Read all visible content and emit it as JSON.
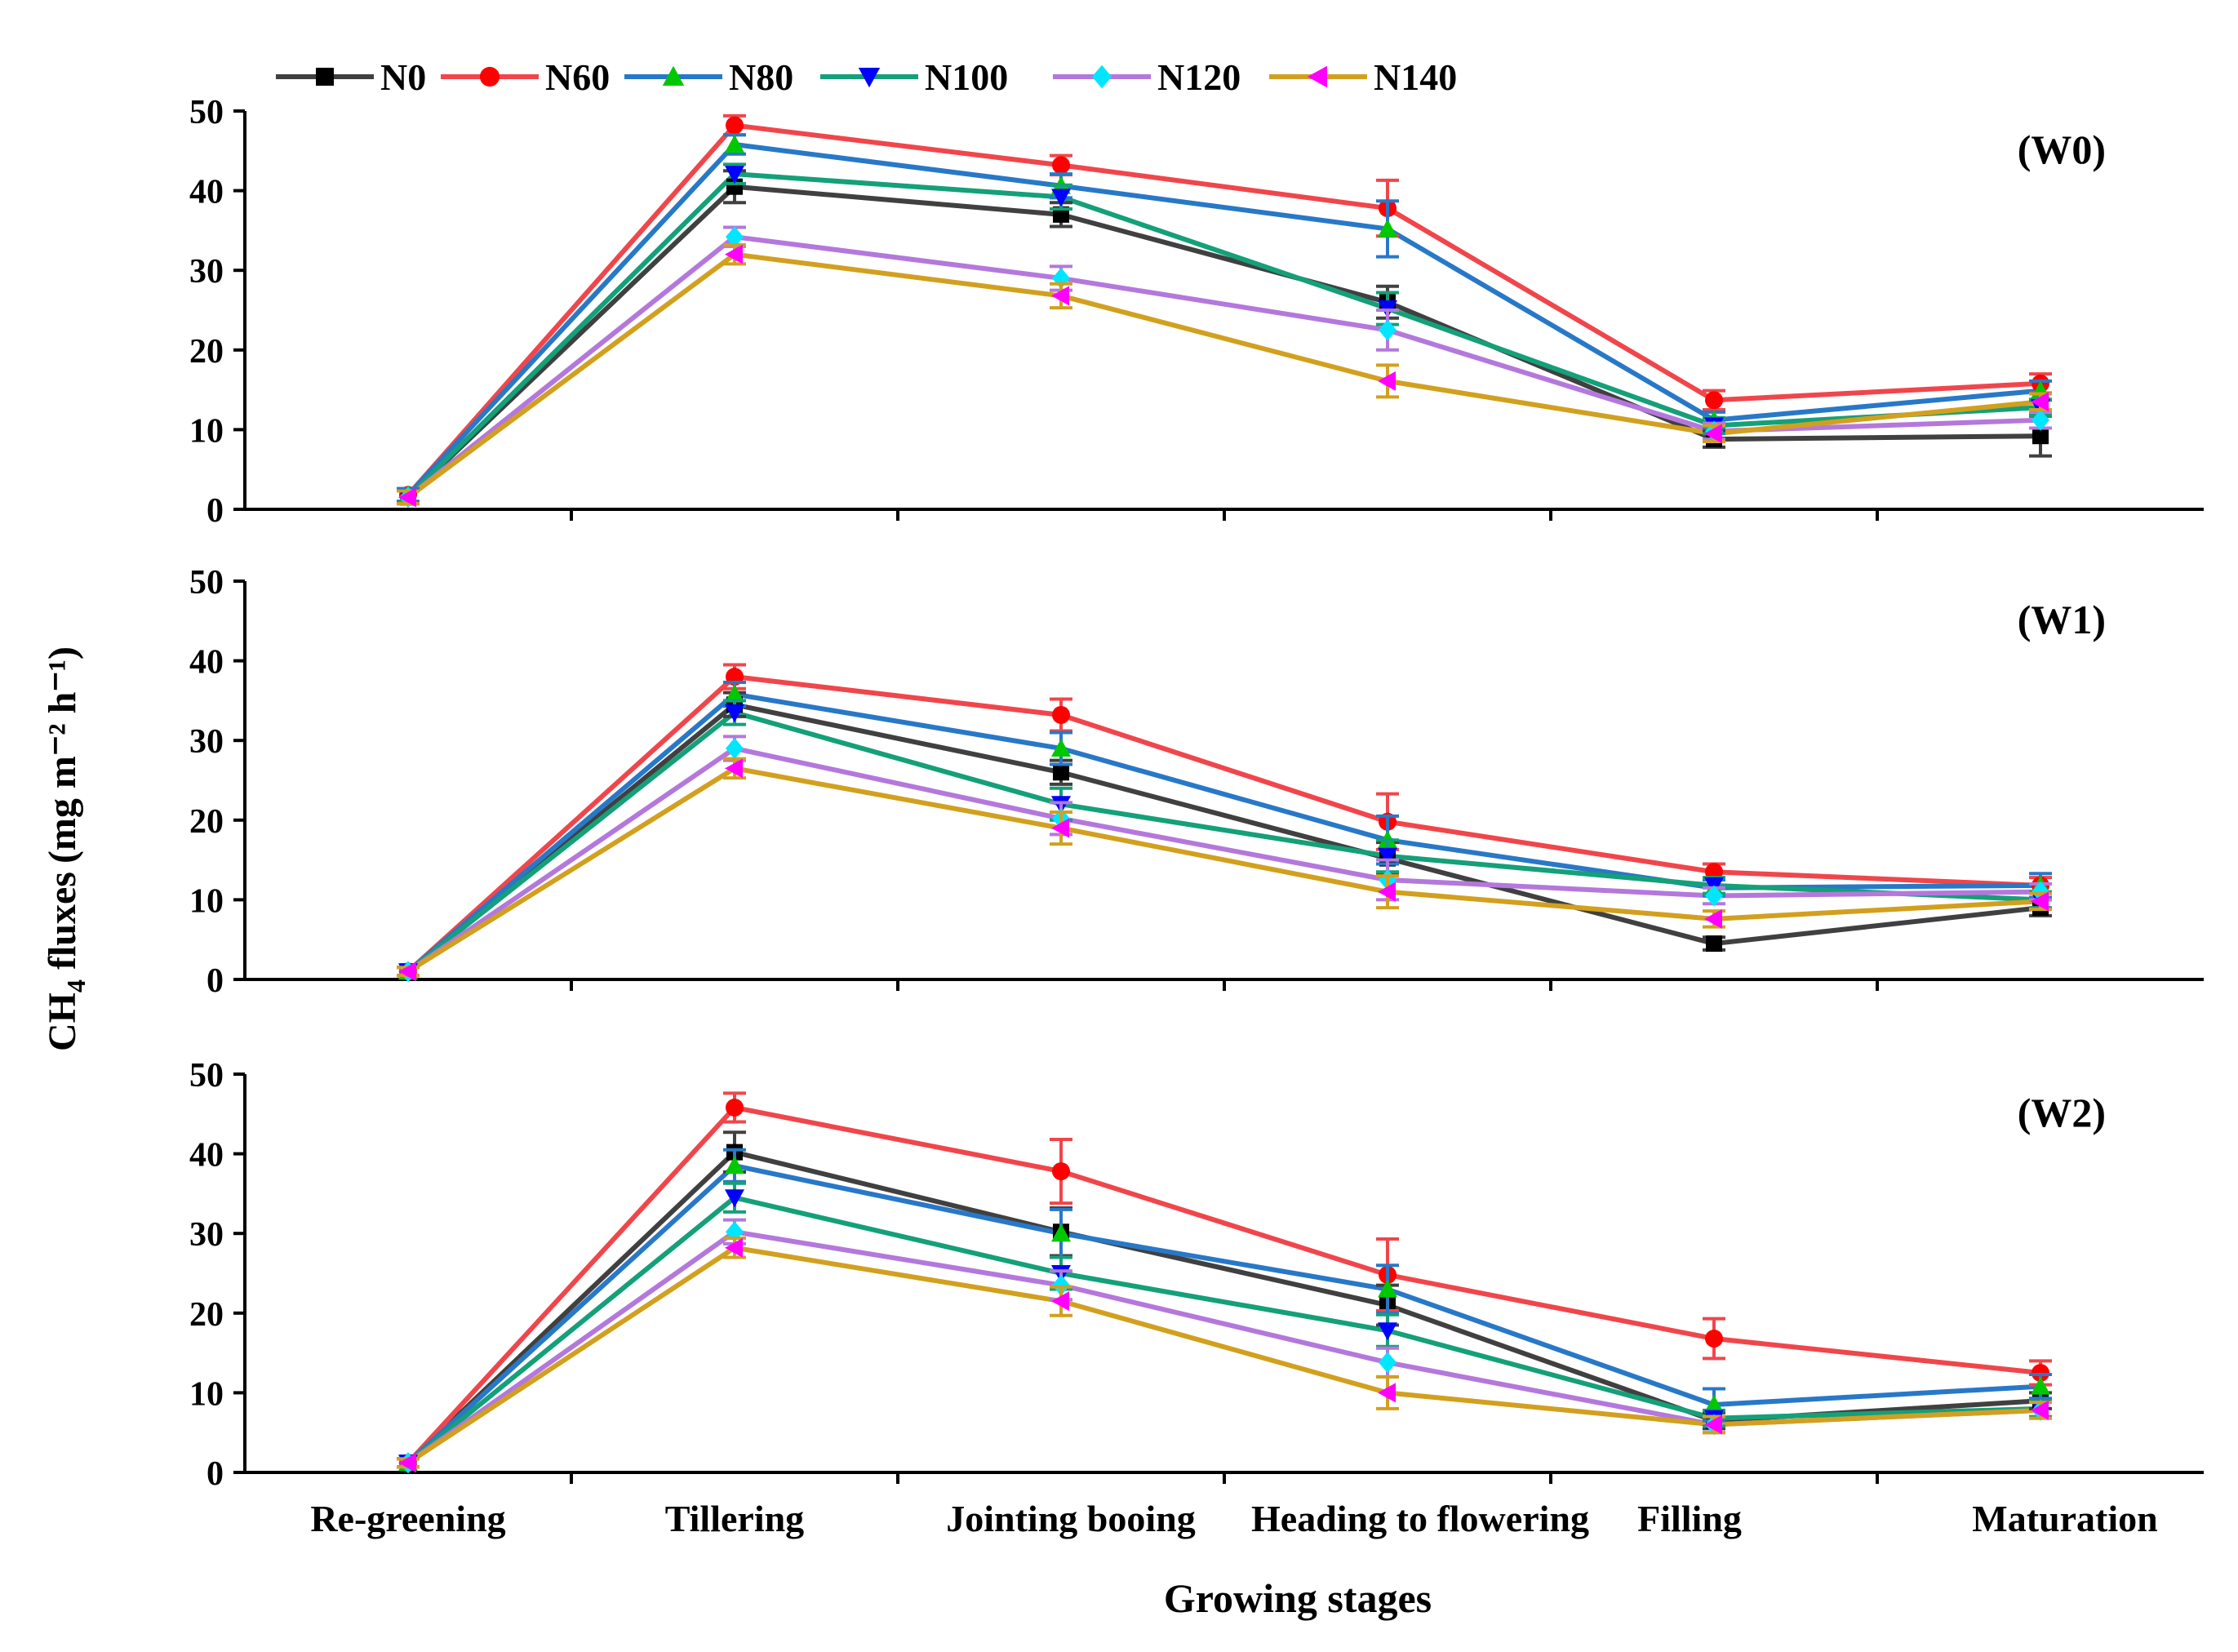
{
  "chart_data": {
    "type": "line",
    "xlabel": "Growing stages",
    "ylabel_main": "CH",
    "ylabel_sub": "4",
    "ylabel_rest": " fluxes",
    "ylabel_unit": "(mg m⁻² h⁻¹)",
    "categories": [
      "Re-greening",
      "Tillering",
      "Jointing booing",
      "Heading to flowering",
      "Filling",
      "Maturation"
    ],
    "ylim": [
      0,
      50
    ],
    "yticks": [
      0,
      10,
      20,
      30,
      40,
      50
    ],
    "legend_position": "top-left",
    "series_style": [
      {
        "name": "N0",
        "color": "#404040",
        "marker_color": "#000000",
        "marker": "square"
      },
      {
        "name": "N60",
        "color": "#f0464b",
        "marker_color": "#ff0000",
        "marker": "circle"
      },
      {
        "name": "N80",
        "color": "#2878c8",
        "marker_color": "#00c800",
        "marker": "triangle-up"
      },
      {
        "name": "N100",
        "color": "#14a078",
        "marker_color": "#0000ff",
        "marker": "triangle-down"
      },
      {
        "name": "N120",
        "color": "#b478dc",
        "marker_color": "#00e6ff",
        "marker": "diamond"
      },
      {
        "name": "N140",
        "color": "#d2a01e",
        "marker_color": "#ff00ff",
        "marker": "triangle-left"
      }
    ],
    "panels": [
      {
        "label": "(W0)",
        "series": [
          {
            "name": "N0",
            "values": [
              1.5,
              40.5,
              37.0,
              26.0,
              8.8,
              9.2
            ],
            "errors": [
              0.8,
              2.0,
              1.5,
              2.0,
              1.0,
              2.5
            ]
          },
          {
            "name": "N60",
            "values": [
              1.8,
              48.2,
              43.2,
              37.8,
              13.7,
              15.8
            ],
            "errors": [
              0.8,
              1.2,
              1.2,
              3.5,
              1.2,
              1.2
            ]
          },
          {
            "name": "N80",
            "values": [
              1.8,
              45.8,
              40.6,
              35.2,
              11.2,
              14.9
            ],
            "errors": [
              0.8,
              1.2,
              1.5,
              3.5,
              1.0,
              1.2
            ]
          },
          {
            "name": "N100",
            "values": [
              1.5,
              42.1,
              39.2,
              25.2,
              10.5,
              12.8
            ],
            "errors": [
              0.8,
              1.2,
              1.5,
              2.0,
              1.0,
              1.0
            ]
          },
          {
            "name": "N120",
            "values": [
              1.5,
              34.2,
              29.0,
              22.5,
              9.8,
              11.2
            ],
            "errors": [
              0.8,
              1.2,
              1.5,
              2.5,
              1.0,
              1.0
            ]
          },
          {
            "name": "N140",
            "values": [
              1.5,
              32.0,
              26.8,
              16.1,
              9.5,
              13.5
            ],
            "errors": [
              0.8,
              1.2,
              1.5,
              2.0,
              1.0,
              1.0
            ]
          }
        ]
      },
      {
        "label": "(W1)",
        "series": [
          {
            "name": "N0",
            "values": [
              1.0,
              34.5,
              26.0,
              15.2,
              4.5,
              9.0
            ],
            "errors": [
              0.5,
              1.5,
              1.5,
              2.0,
              0.8,
              1.0
            ]
          },
          {
            "name": "N60",
            "values": [
              1.0,
              38.0,
              33.2,
              19.8,
              13.5,
              11.8
            ],
            "errors": [
              0.5,
              1.5,
              2.0,
              3.5,
              1.0,
              1.0
            ]
          },
          {
            "name": "N80",
            "values": [
              1.0,
              35.8,
              29.0,
              17.5,
              11.5,
              11.8
            ],
            "errors": [
              0.5,
              1.5,
              2.0,
              3.0,
              1.0,
              1.5
            ]
          },
          {
            "name": "N100",
            "values": [
              1.0,
              33.5,
              22.0,
              15.5,
              11.8,
              10.0
            ],
            "errors": [
              0.5,
              1.5,
              2.0,
              2.0,
              1.0,
              1.0
            ]
          },
          {
            "name": "N120",
            "values": [
              1.0,
              29.0,
              20.2,
              12.5,
              10.5,
              11.0
            ],
            "errors": [
              0.5,
              1.5,
              2.0,
              2.5,
              1.0,
              1.0
            ]
          },
          {
            "name": "N140",
            "values": [
              1.0,
              26.5,
              19.0,
              11.0,
              7.6,
              9.8
            ],
            "errors": [
              0.5,
              1.2,
              2.0,
              2.0,
              1.0,
              1.0
            ]
          }
        ]
      },
      {
        "label": "(W2)",
        "series": [
          {
            "name": "N0",
            "values": [
              1.2,
              40.2,
              30.2,
              21.0,
              6.5,
              9.0
            ],
            "errors": [
              0.5,
              2.5,
              3.0,
              2.5,
              1.0,
              1.0
            ]
          },
          {
            "name": "N60",
            "values": [
              1.2,
              45.8,
              37.8,
              24.8,
              16.8,
              12.5
            ],
            "errors": [
              0.5,
              1.8,
              4.0,
              4.5,
              2.5,
              1.5
            ]
          },
          {
            "name": "N80",
            "values": [
              1.2,
              38.5,
              30.0,
              23.0,
              8.5,
              10.8
            ],
            "errors": [
              0.5,
              2.0,
              3.0,
              3.0,
              2.0,
              1.5
            ]
          },
          {
            "name": "N100",
            "values": [
              1.2,
              34.5,
              25.0,
              17.8,
              6.8,
              8.0
            ],
            "errors": [
              0.5,
              1.8,
              2.0,
              2.0,
              1.0,
              1.0
            ]
          },
          {
            "name": "N120",
            "values": [
              1.2,
              30.2,
              23.5,
              13.8,
              6.0,
              7.8
            ],
            "errors": [
              0.5,
              1.5,
              1.8,
              1.8,
              1.0,
              1.0
            ]
          },
          {
            "name": "N140",
            "values": [
              1.2,
              28.2,
              21.5,
              10.0,
              6.0,
              7.8
            ],
            "errors": [
              0.5,
              1.2,
              1.8,
              2.0,
              1.0,
              1.0
            ]
          }
        ]
      }
    ]
  }
}
